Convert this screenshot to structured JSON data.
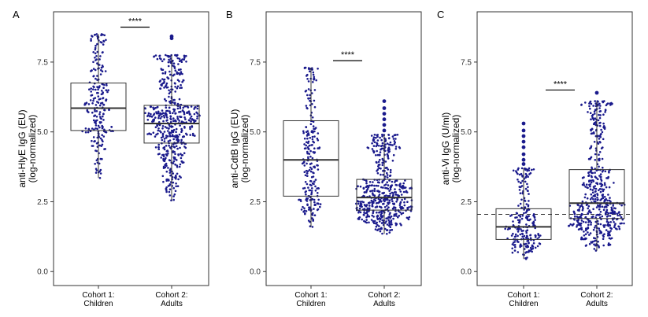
{
  "chart_data": [
    {
      "panel": "A",
      "type": "box",
      "ylabel": [
        "anti-HlyE IgG (EU)",
        "(log-normalized)"
      ],
      "ylim": [
        -0.5,
        9.3
      ],
      "yticks": [
        0.0,
        2.5,
        5.0,
        7.5
      ],
      "ytick_labels": [
        "0.0",
        "2.5",
        "5.0",
        "7.5"
      ],
      "categories": [
        [
          "Cohort 1:",
          "Children"
        ],
        [
          "Cohort 2:",
          "Adults"
        ]
      ],
      "boxes": [
        {
          "whisker_low": 3.35,
          "q1": 5.05,
          "median": 5.85,
          "q3": 6.75,
          "whisker_high": 8.5,
          "outliers": [],
          "n_points": 230
        },
        {
          "whisker_low": 2.55,
          "q1": 4.6,
          "median": 5.3,
          "q3": 5.95,
          "whisker_high": 7.75,
          "outliers": [
            8.35,
            8.42
          ],
          "n_points": 520
        }
      ],
      "significance": "****",
      "sig_y": 8.75,
      "reference_line": null
    },
    {
      "panel": "B",
      "type": "box",
      "ylabel": [
        "anti-CdtB IgG (EU)",
        "(log-normalized)"
      ],
      "ylim": [
        -0.5,
        9.3
      ],
      "yticks": [
        0.0,
        2.5,
        5.0,
        7.5
      ],
      "ytick_labels": [
        "0.0",
        "2.5",
        "5.0",
        "7.5"
      ],
      "categories": [
        [
          "Cohort 1:",
          "Children"
        ],
        [
          "Cohort 2:",
          "Adults"
        ]
      ],
      "boxes": [
        {
          "whisker_low": 1.6,
          "q1": 2.7,
          "median": 4.0,
          "q3": 5.4,
          "whisker_high": 7.3,
          "outliers": [],
          "n_points": 230
        },
        {
          "whisker_low": 1.35,
          "q1": 2.2,
          "median": 2.65,
          "q3": 3.3,
          "whisker_high": 4.9,
          "outliers": [
            5.05,
            5.25,
            5.45,
            5.65,
            5.85,
            6.1
          ],
          "n_points": 520
        }
      ],
      "significance": "****",
      "sig_y": 7.55,
      "reference_line": null
    },
    {
      "panel": "C",
      "type": "box",
      "ylabel": [
        "anti-Vi IgG (U/ml)",
        "(log-normalized)"
      ],
      "ylim": [
        -0.5,
        9.3
      ],
      "yticks": [
        0.0,
        2.5,
        5.0,
        7.5
      ],
      "ytick_labels": [
        "0.0",
        "2.5",
        "5.0",
        "7.5"
      ],
      "categories": [
        [
          "Cohort 1:",
          "Children"
        ],
        [
          "Cohort 2:",
          "Adults"
        ]
      ],
      "boxes": [
        {
          "whisker_low": 0.45,
          "q1": 1.15,
          "median": 1.6,
          "q3": 2.25,
          "whisker_high": 3.7,
          "outliers": [
            3.85,
            4.0,
            4.2,
            4.45,
            4.65,
            4.85,
            5.05,
            5.3
          ],
          "n_points": 230
        },
        {
          "whisker_low": 0.75,
          "q1": 1.9,
          "median": 2.45,
          "q3": 3.65,
          "whisker_high": 6.1,
          "outliers": [
            6.4
          ],
          "n_points": 520
        }
      ],
      "significance": "****",
      "sig_y": 6.5,
      "reference_line": 2.05
    }
  ],
  "colors": {
    "points": "#1a1a8c",
    "box": "#333333",
    "frame": "#333333",
    "reference": "#333333"
  }
}
